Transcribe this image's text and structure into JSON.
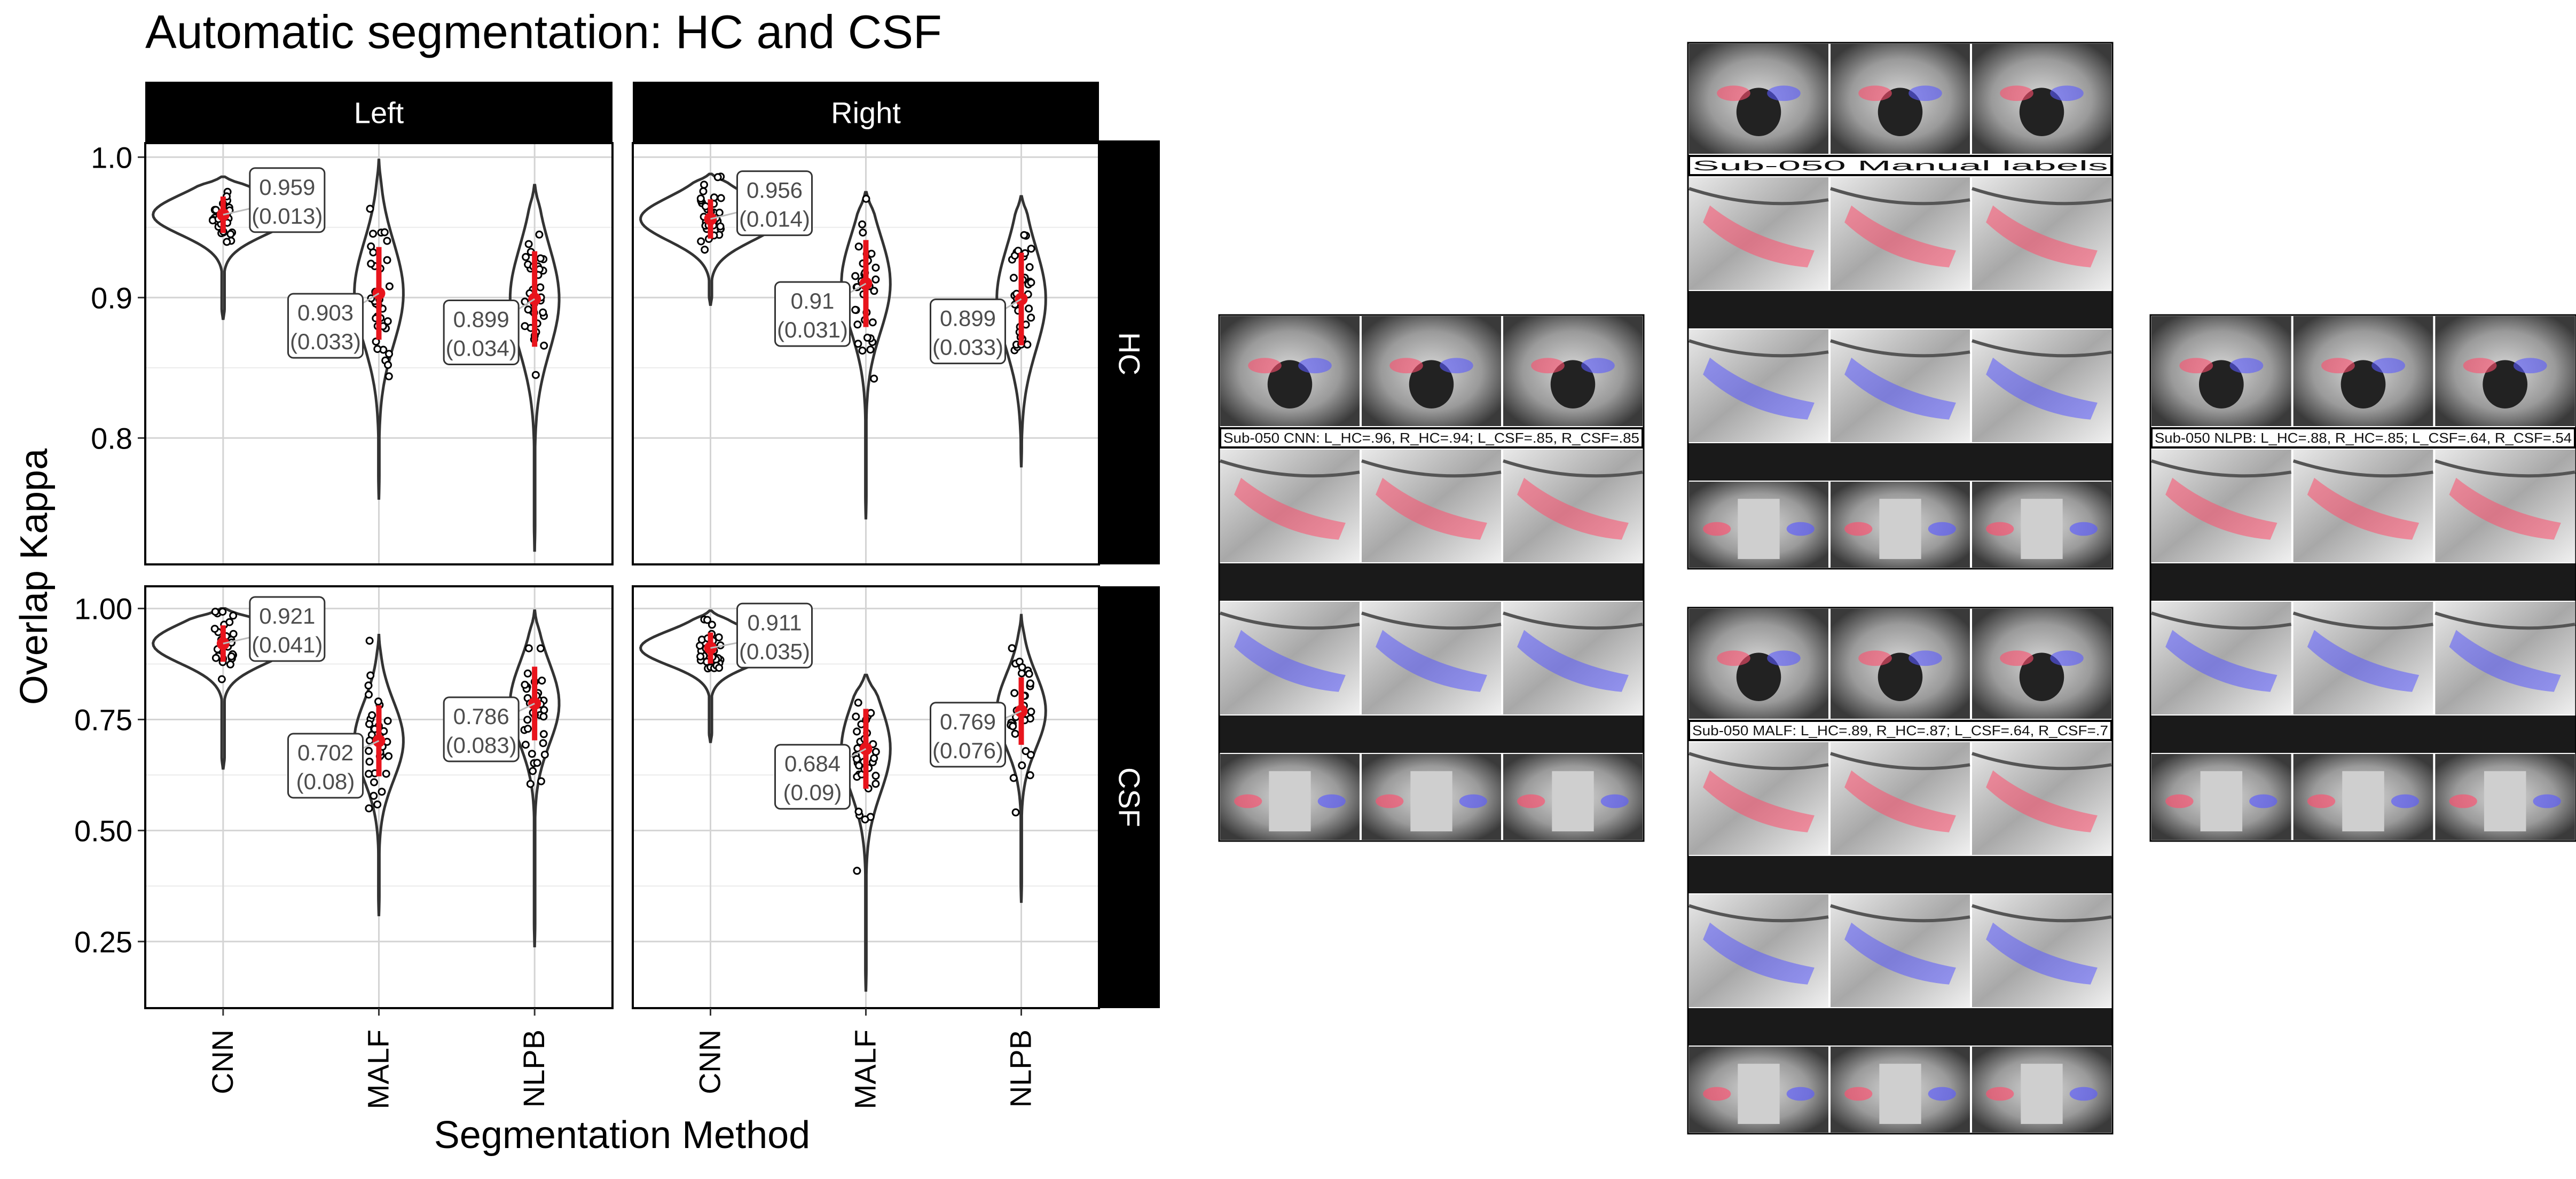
{
  "chart_data": {
    "type": "violin",
    "title": "Automatic segmentation: HC and CSF",
    "xlabel": "Segmentation Method",
    "ylabel": "Overlap Kappa",
    "categories": [
      "CNN",
      "MALF",
      "NLPB"
    ],
    "facet_cols": [
      "Left",
      "Right"
    ],
    "facet_rows": [
      "HC",
      "CSF"
    ],
    "grid": true,
    "panels": [
      {
        "row": "HC",
        "col": "Left",
        "ylim": [
          0.71,
          1.01
        ],
        "yticks": [
          {
            "v": 0.8,
            "label": "0.8"
          },
          {
            "v": 0.9,
            "label": "0.9"
          },
          {
            "v": 1.0,
            "label": "1.0"
          }
        ],
        "groups": [
          {
            "name": "CNN",
            "mean": 0.959,
            "sd": 0.013,
            "mean_label": "0.959",
            "sd_label": "(0.013)",
            "min": 0.885,
            "max": 0.986
          },
          {
            "name": "MALF",
            "mean": 0.903,
            "sd": 0.033,
            "mean_label": "0.903",
            "sd_label": "(0.033)",
            "min": 0.757,
            "max": 0.998
          },
          {
            "name": "NLPB",
            "mean": 0.899,
            "sd": 0.034,
            "mean_label": "0.899",
            "sd_label": "(0.034)",
            "min": 0.72,
            "max": 0.98
          }
        ]
      },
      {
        "row": "HC",
        "col": "Right",
        "ylim": [
          0.71,
          1.01
        ],
        "yticks": [
          {
            "v": 0.8,
            "label": "0.8"
          },
          {
            "v": 0.9,
            "label": "0.9"
          },
          {
            "v": 1.0,
            "label": "1.0"
          }
        ],
        "groups": [
          {
            "name": "CNN",
            "mean": 0.956,
            "sd": 0.014,
            "mean_label": "0.956",
            "sd_label": "(0.014)",
            "min": 0.895,
            "max": 0.988
          },
          {
            "name": "MALF",
            "mean": 0.91,
            "sd": 0.031,
            "mean_label": "0.91",
            "sd_label": "(0.031)",
            "min": 0.743,
            "max": 0.975
          },
          {
            "name": "NLPB",
            "mean": 0.899,
            "sd": 0.033,
            "mean_label": "0.899",
            "sd_label": "(0.033)",
            "min": 0.78,
            "max": 0.972
          }
        ]
      },
      {
        "row": "CSF",
        "col": "Left",
        "ylim": [
          0.1,
          1.05
        ],
        "yticks": [
          {
            "v": 0.25,
            "label": "0.25"
          },
          {
            "v": 0.5,
            "label": "0.50"
          },
          {
            "v": 0.75,
            "label": "0.75"
          },
          {
            "v": 1.0,
            "label": "1.00"
          }
        ],
        "groups": [
          {
            "name": "CNN",
            "mean": 0.921,
            "sd": 0.041,
            "mean_label": "0.921",
            "sd_label": "(0.041)",
            "min": 0.64,
            "max": 1.0
          },
          {
            "name": "MALF",
            "mean": 0.702,
            "sd": 0.08,
            "mean_label": "0.702",
            "sd_label": "(0.08)",
            "min": 0.31,
            "max": 0.94
          },
          {
            "name": "NLPB",
            "mean": 0.786,
            "sd": 0.083,
            "mean_label": "0.786",
            "sd_label": "(0.083)",
            "min": 0.24,
            "max": 0.995
          }
        ]
      },
      {
        "row": "CSF",
        "col": "Right",
        "ylim": [
          0.1,
          1.05
        ],
        "yticks": [
          {
            "v": 0.25,
            "label": "0.25"
          },
          {
            "v": 0.5,
            "label": "0.50"
          },
          {
            "v": 0.75,
            "label": "0.75"
          },
          {
            "v": 1.0,
            "label": "1.00"
          }
        ],
        "groups": [
          {
            "name": "CNN",
            "mean": 0.911,
            "sd": 0.035,
            "mean_label": "0.911",
            "sd_label": "(0.035)",
            "min": 0.7,
            "max": 0.995
          },
          {
            "name": "MALF",
            "mean": 0.684,
            "sd": 0.09,
            "mean_label": "0.684",
            "sd_label": "(0.09)",
            "min": 0.14,
            "max": 0.85
          },
          {
            "name": "NLPB",
            "mean": 0.769,
            "sd": 0.076,
            "mean_label": "0.769",
            "sd_label": "(0.076)",
            "min": 0.34,
            "max": 0.985
          }
        ]
      }
    ]
  },
  "image_panels": [
    {
      "caption": "Sub-050 CNN: L_HC=.96, R_HC=.94; L_CSF=.85, R_CSF=.85"
    },
    {
      "caption": "Sub-050 Manual labels"
    },
    {
      "caption": "Sub-050 MALF: L_HC=.89, R_HC=.87; L_CSF=.64, R_CSF=.7"
    },
    {
      "caption": "Sub-050 NLPB: L_HC=.88, R_HC=.85; L_CSF=.64, R_CSF=.54"
    }
  ],
  "colors": {
    "strip_bg": "#000000",
    "strip_text": "#ffffff",
    "violin": "#333333",
    "mean_bar": "#e8141c",
    "grid": "#d4d4d4",
    "label_text": "#4d4d4d",
    "left_label": "#ff4f6e",
    "right_label": "#5a5aff",
    "caption_bar": "#1a1a1a"
  }
}
